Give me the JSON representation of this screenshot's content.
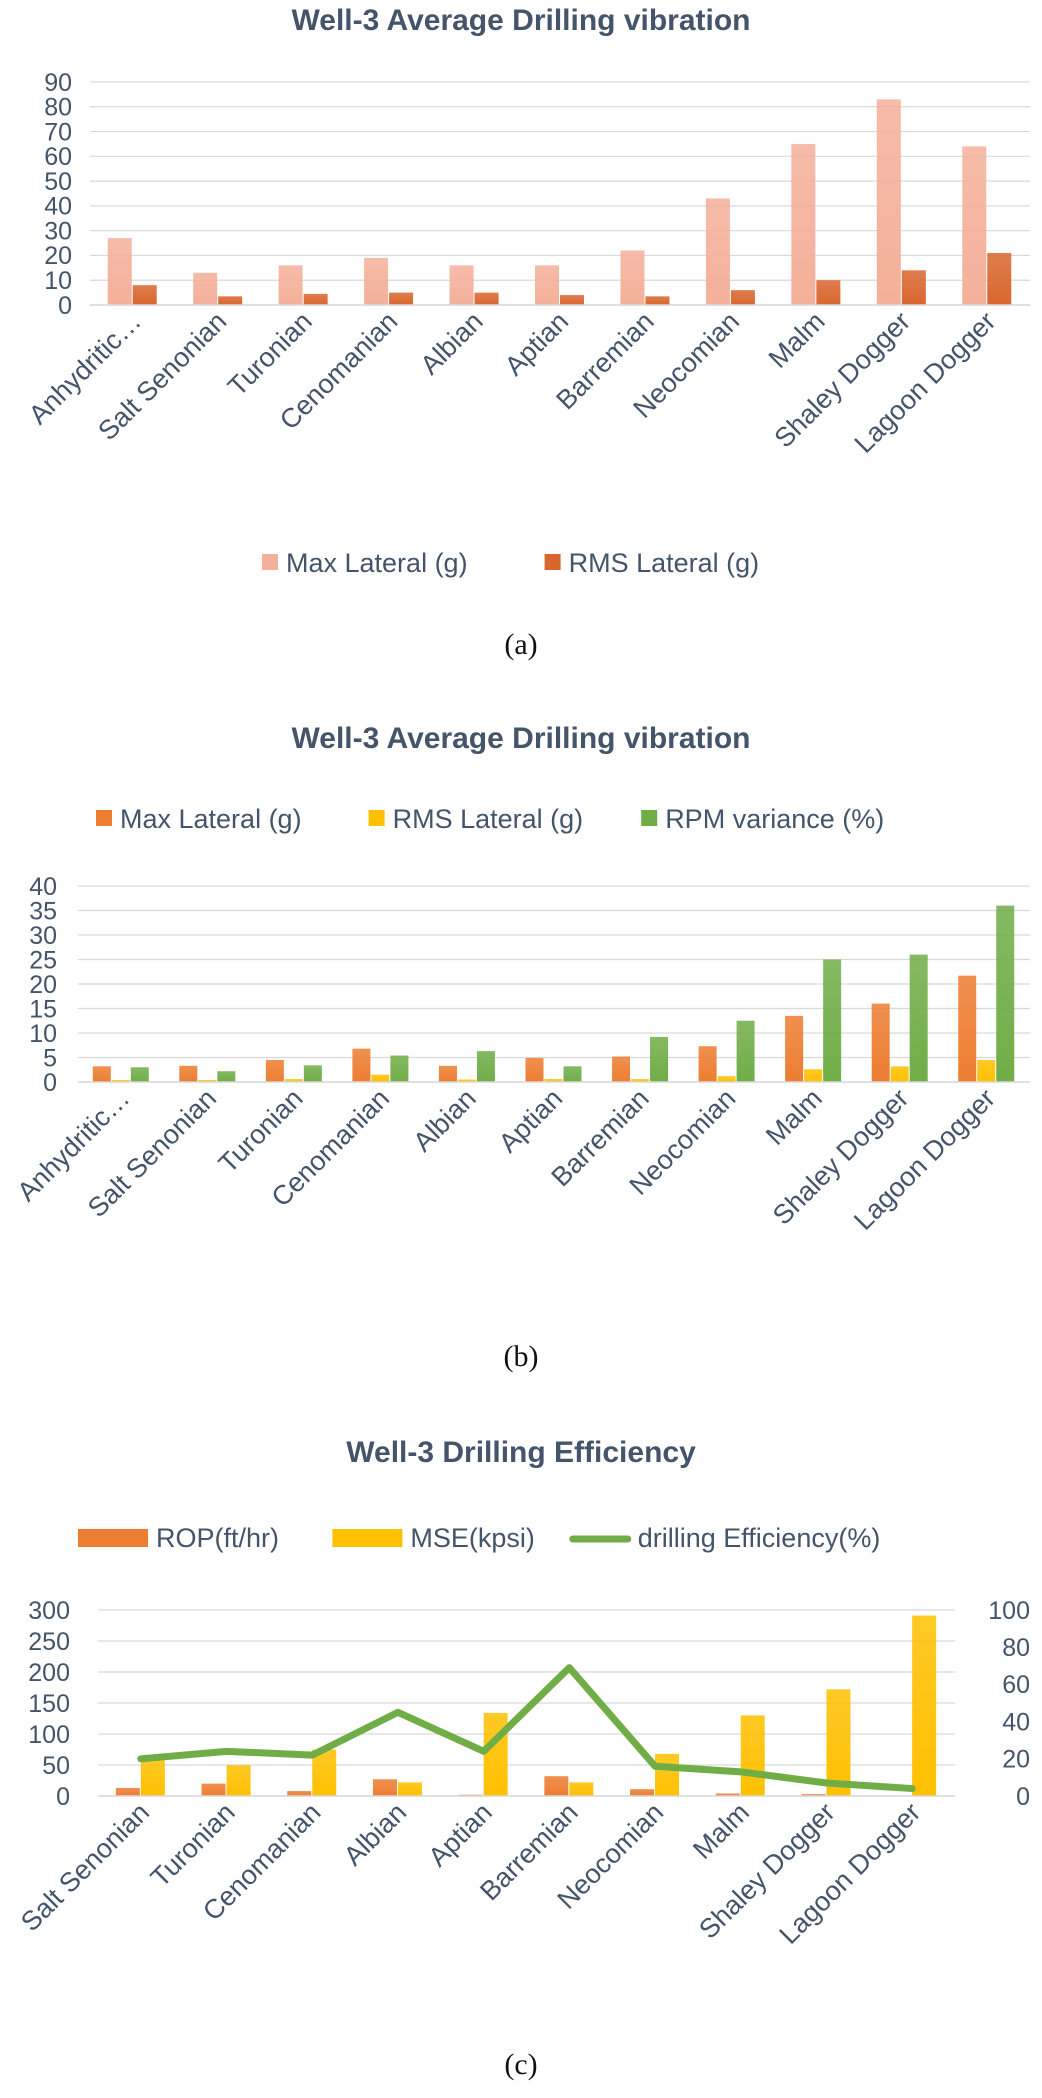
{
  "chart_data": [
    {
      "id": "a",
      "type": "bar",
      "title": "Well-3 Average Drilling vibration",
      "caption": "(a)",
      "categories": [
        "Anhydritic…",
        "Salt Senonian",
        "Turonian",
        "Cenomanian",
        "Albian",
        "Aptian",
        "Barremian",
        "Neocomian",
        "Malm",
        "Shaley Dogger",
        "Lagoon Dogger"
      ],
      "series": [
        {
          "name": "Max Lateral (g)",
          "color": "#f4b09a",
          "values": [
            27,
            13,
            16,
            19,
            16,
            16,
            22,
            43,
            65,
            83,
            64
          ]
        },
        {
          "name": "RMS Lateral (g)",
          "color": "#d9662e",
          "values": [
            8,
            3.5,
            4.5,
            5,
            5,
            4,
            3.5,
            6,
            10,
            14,
            21
          ]
        }
      ],
      "yticks": [
        0,
        10,
        20,
        30,
        40,
        50,
        60,
        70,
        80,
        90
      ],
      "ylim": [
        0,
        90
      ],
      "grid": true,
      "legend_position": "bottom"
    },
    {
      "id": "b",
      "type": "bar",
      "title": "Well-3 Average Drilling vibration",
      "caption": "(b)",
      "categories": [
        "Anhydritic…",
        "Salt Senonian",
        "Turonian",
        "Cenomanian",
        "Albian",
        "Aptian",
        "Barremian",
        "Neocomian",
        "Malm",
        "Shaley Dogger",
        "Lagoon Dogger"
      ],
      "series": [
        {
          "name": "Max Lateral (g)",
          "color": "#ed7d31",
          "values": [
            3.2,
            3.3,
            4.5,
            6.8,
            3.3,
            4.9,
            5.2,
            7.3,
            13.5,
            16,
            21.7
          ]
        },
        {
          "name": "RMS Lateral (g)",
          "color": "#ffc000",
          "values": [
            0.4,
            0.4,
            0.6,
            1.5,
            0.5,
            0.6,
            0.6,
            1.2,
            2.6,
            3.2,
            4.5
          ]
        },
        {
          "name": "RPM variance (%)",
          "color": "#70ad47",
          "values": [
            3,
            2.2,
            3.4,
            5.4,
            6.3,
            3.2,
            9.2,
            12.5,
            25,
            26,
            36
          ]
        }
      ],
      "yticks": [
        0,
        5,
        10,
        15,
        20,
        25,
        30,
        35,
        40
      ],
      "ylim": [
        0,
        40
      ],
      "grid": true,
      "legend_position": "top"
    },
    {
      "id": "c",
      "type": "bar",
      "title": "Well-3 Drilling Efficiency",
      "caption": "(c)",
      "categories": [
        "Salt Senonian",
        "Turonian",
        "Cenomanian",
        "Albian",
        "Aptian",
        "Barremian",
        "Neocomian",
        "Malm",
        "Shaley Dogger",
        "Lagoon Dogger"
      ],
      "series": [
        {
          "name": "ROP(ft/hr)",
          "kind": "bar",
          "axis": "left",
          "color": "#ed7d31",
          "values": [
            13,
            20,
            8,
            27,
            2,
            32,
            11,
            4,
            3,
            0
          ]
        },
        {
          "name": "MSE(kpsi)",
          "kind": "bar",
          "axis": "left",
          "color": "#ffc000",
          "values": [
            60,
            50,
            75,
            22,
            134,
            22,
            68,
            130,
            172,
            291
          ]
        },
        {
          "name": "drilling Efficiency(%)",
          "kind": "line",
          "axis": "right",
          "color": "#70ad47",
          "values": [
            20,
            24,
            22,
            45,
            24,
            69,
            16,
            13,
            7,
            4
          ]
        }
      ],
      "yticks": [
        0,
        50,
        100,
        150,
        200,
        250,
        300
      ],
      "ylim": [
        0,
        300
      ],
      "y2ticks": [
        0,
        20,
        40,
        60,
        80,
        100
      ],
      "y2lim": [
        0,
        100
      ],
      "grid": true,
      "legend_position": "top"
    }
  ]
}
